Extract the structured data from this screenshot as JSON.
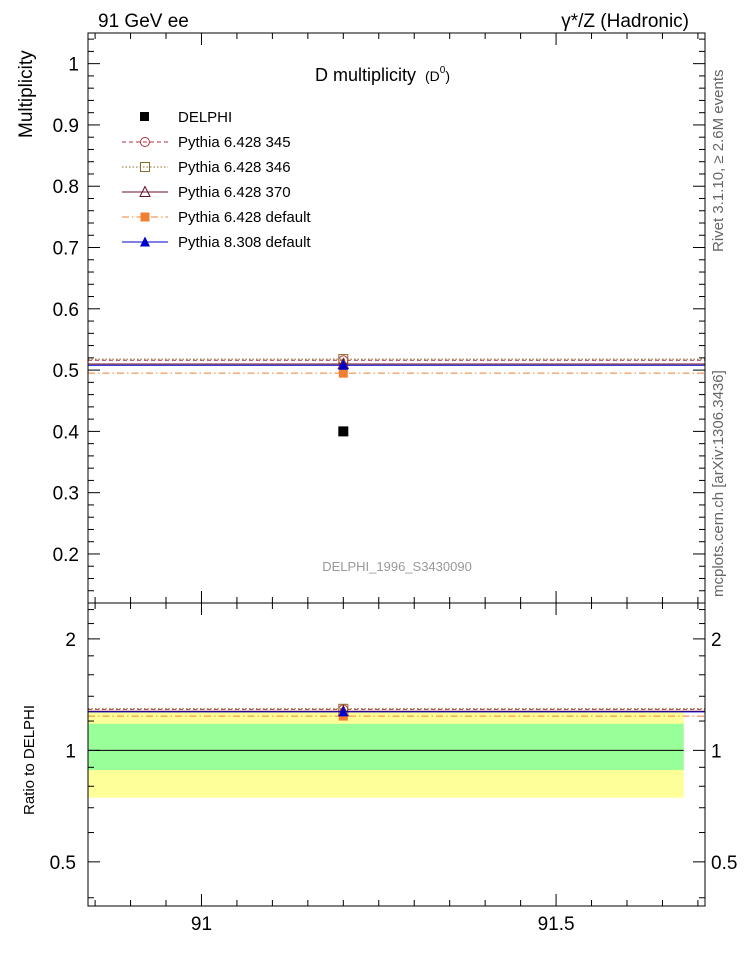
{
  "header": {
    "left": "91 GeV ee",
    "right": "γ*/Z (Hadronic)"
  },
  "side_labels": {
    "top": "Rivet 3.1.10, ≥ 2.6M events",
    "bottom": "mcplots.cern.ch [arXiv:1306.3436]"
  },
  "colors": {
    "delphi": "#000000",
    "p345": "#b03040",
    "p346": "#8b6b2a",
    "p370": "#6b0f25",
    "p6def": "#f08030",
    "p8def": "#0000cc",
    "band_inner": "#99ff99",
    "band_outer": "#ffff99"
  },
  "chart_data": [
    {
      "type": "scatter",
      "title": "D multiplicity",
      "title_sup_base": "(D",
      "title_sup": "0",
      "title_close": ")",
      "ylabel": "Multiplicity",
      "watermark": "DELPHI_1996_S3430090",
      "xlim": [
        90.84,
        91.71
      ],
      "ylim": [
        0.12,
        1.05
      ],
      "yticks": [
        0.2,
        0.3,
        0.4,
        0.5,
        0.6,
        0.7,
        0.8,
        0.9,
        1
      ],
      "ytick_labels": [
        "0.2",
        "0.3",
        "0.4",
        "0.5",
        "0.6",
        "0.7",
        "0.8",
        "0.9",
        "1"
      ],
      "x_center": 91.2,
      "data": {
        "name": "DELPHI",
        "x": 91.2,
        "y": 0.4
      },
      "series": [
        {
          "name": "Pythia 6.428 345",
          "y": 0.516,
          "style": "dashed",
          "marker": "open-circle"
        },
        {
          "name": "Pythia 6.428 346",
          "y": 0.518,
          "style": "dotted",
          "marker": "open-square"
        },
        {
          "name": "Pythia 6.428 370",
          "y": 0.51,
          "style": "solid",
          "marker": "open-triangle"
        },
        {
          "name": "Pythia 6.428 default",
          "y": 0.495,
          "style": "dashdot",
          "marker": "filled-square"
        },
        {
          "name": "Pythia 8.308 default",
          "y": 0.508,
          "style": "solid",
          "marker": "filled-triangle"
        }
      ]
    },
    {
      "type": "scatter",
      "ylabel": "Ratio to DELPHI",
      "yscale": "log",
      "xlim": [
        90.84,
        91.71
      ],
      "ylim": [
        0.38,
        2.5
      ],
      "xticks": [
        91,
        91.5
      ],
      "xtick_labels": [
        "91",
        "91.5"
      ],
      "yticks": [
        0.5,
        1,
        2
      ],
      "ytick_labels": [
        "0.5",
        "1",
        "2"
      ],
      "reference": 1.0,
      "band_inner": [
        0.885,
        1.18
      ],
      "band_outer": [
        0.745,
        1.27
      ],
      "band_xlim": [
        90.84,
        91.68
      ],
      "series": [
        {
          "name": "Pythia 6.428 345",
          "y": 1.29
        },
        {
          "name": "Pythia 6.428 346",
          "y": 1.295
        },
        {
          "name": "Pythia 6.428 370",
          "y": 1.275
        },
        {
          "name": "Pythia 6.428 default",
          "y": 1.2375
        },
        {
          "name": "Pythia 8.308 default",
          "y": 1.27
        }
      ]
    }
  ]
}
